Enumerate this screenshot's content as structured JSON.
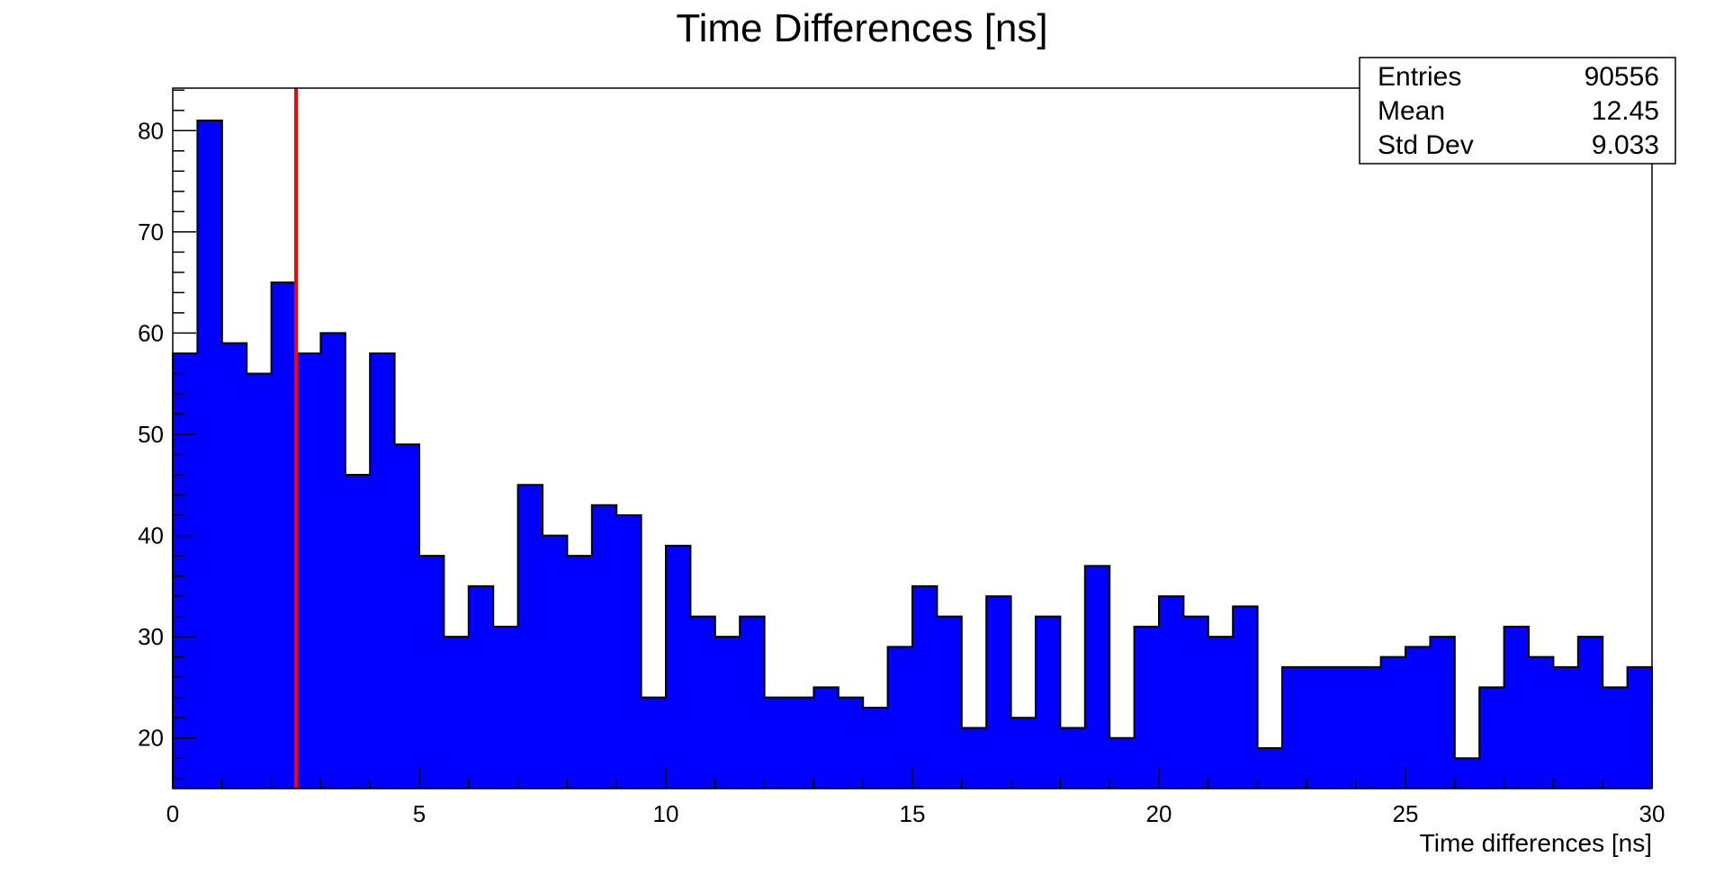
{
  "chart_data": {
    "type": "bar",
    "title": "Time Differences [ns]",
    "xlabel": "Time differences [ns]",
    "ylabel": "",
    "xlim": [
      0,
      30
    ],
    "ylim": [
      15,
      84.2
    ],
    "bin_width": 0.5,
    "x_ticks": [
      0,
      5,
      10,
      15,
      20,
      25,
      30
    ],
    "y_ticks": [
      20,
      30,
      40,
      50,
      60,
      70,
      80
    ],
    "grid": false,
    "values": [
      58,
      81,
      59,
      56,
      65,
      58,
      60,
      46,
      58,
      49,
      38,
      30,
      35,
      31,
      45,
      40,
      38,
      43,
      42,
      24,
      39,
      32,
      30,
      32,
      24,
      24,
      25,
      24,
      23,
      29,
      35,
      32,
      21,
      34,
      22,
      32,
      21,
      37,
      20,
      31,
      34,
      32,
      30,
      33,
      19,
      27,
      27,
      27,
      27,
      28,
      29,
      30,
      18,
      25,
      31,
      28,
      27,
      30,
      25,
      27
    ],
    "fill_color": "#0000ff",
    "line_color": "#000000",
    "marker_line": {
      "x": 2.5,
      "color": "#ff0000"
    },
    "stats": [
      {
        "label": "Entries",
        "value": "90556"
      },
      {
        "label": "Mean",
        "value": "12.45"
      },
      {
        "label": "Std Dev",
        "value": "9.033"
      }
    ]
  }
}
